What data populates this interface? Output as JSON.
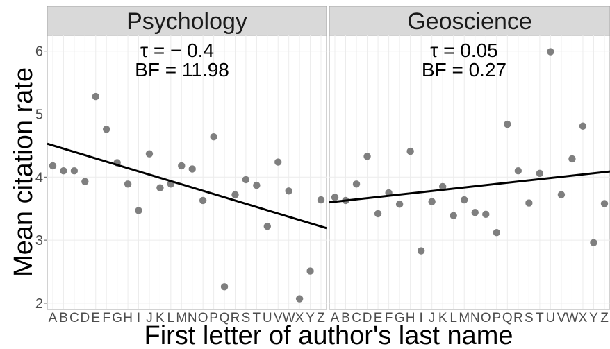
{
  "chart_data": {
    "type": "scatter",
    "xlabel": "First letter of author's last name",
    "ylabel": "Mean citation rate",
    "ylim": [
      1.9,
      6.25
    ],
    "yticks": [
      "2",
      "3",
      "4",
      "5",
      "6"
    ],
    "categories": [
      "A",
      "B",
      "C",
      "D",
      "E",
      "F",
      "G",
      "H",
      "I",
      "J",
      "K",
      "L",
      "M",
      "N",
      "O",
      "P",
      "Q",
      "R",
      "S",
      "T",
      "U",
      "V",
      "W",
      "X",
      "Y",
      "Z"
    ],
    "grid": true,
    "legend": "none",
    "colors": {
      "point": "#7f7f7f",
      "line": "#000000",
      "strip": "#d9d9d9"
    },
    "panels": [
      {
        "title": "Psychology",
        "annotation_tau": "τ = − 0.4",
        "annotation_bf": "BF = 11.98",
        "values": [
          4.18,
          4.1,
          4.1,
          3.93,
          5.28,
          4.76,
          4.23,
          3.89,
          3.47,
          4.37,
          3.83,
          3.89,
          4.18,
          4.13,
          3.63,
          4.64,
          2.26,
          3.72,
          3.96,
          3.87,
          3.22,
          4.24,
          3.78,
          2.07,
          2.51,
          3.64
        ],
        "trend": {
          "start": 4.53,
          "end": 3.19
        }
      },
      {
        "title": "Geoscience",
        "annotation_tau": "τ = 0.05",
        "annotation_bf": "BF = 0.27",
        "values": [
          3.68,
          3.63,
          3.89,
          4.33,
          3.42,
          3.75,
          3.57,
          4.41,
          2.83,
          3.61,
          3.85,
          3.39,
          3.64,
          3.44,
          3.41,
          3.12,
          4.84,
          4.1,
          3.59,
          4.06,
          5.99,
          3.72,
          4.29,
          4.81,
          2.96,
          3.58
        ],
        "trend": {
          "start": 3.6,
          "end": 4.09
        }
      }
    ]
  }
}
